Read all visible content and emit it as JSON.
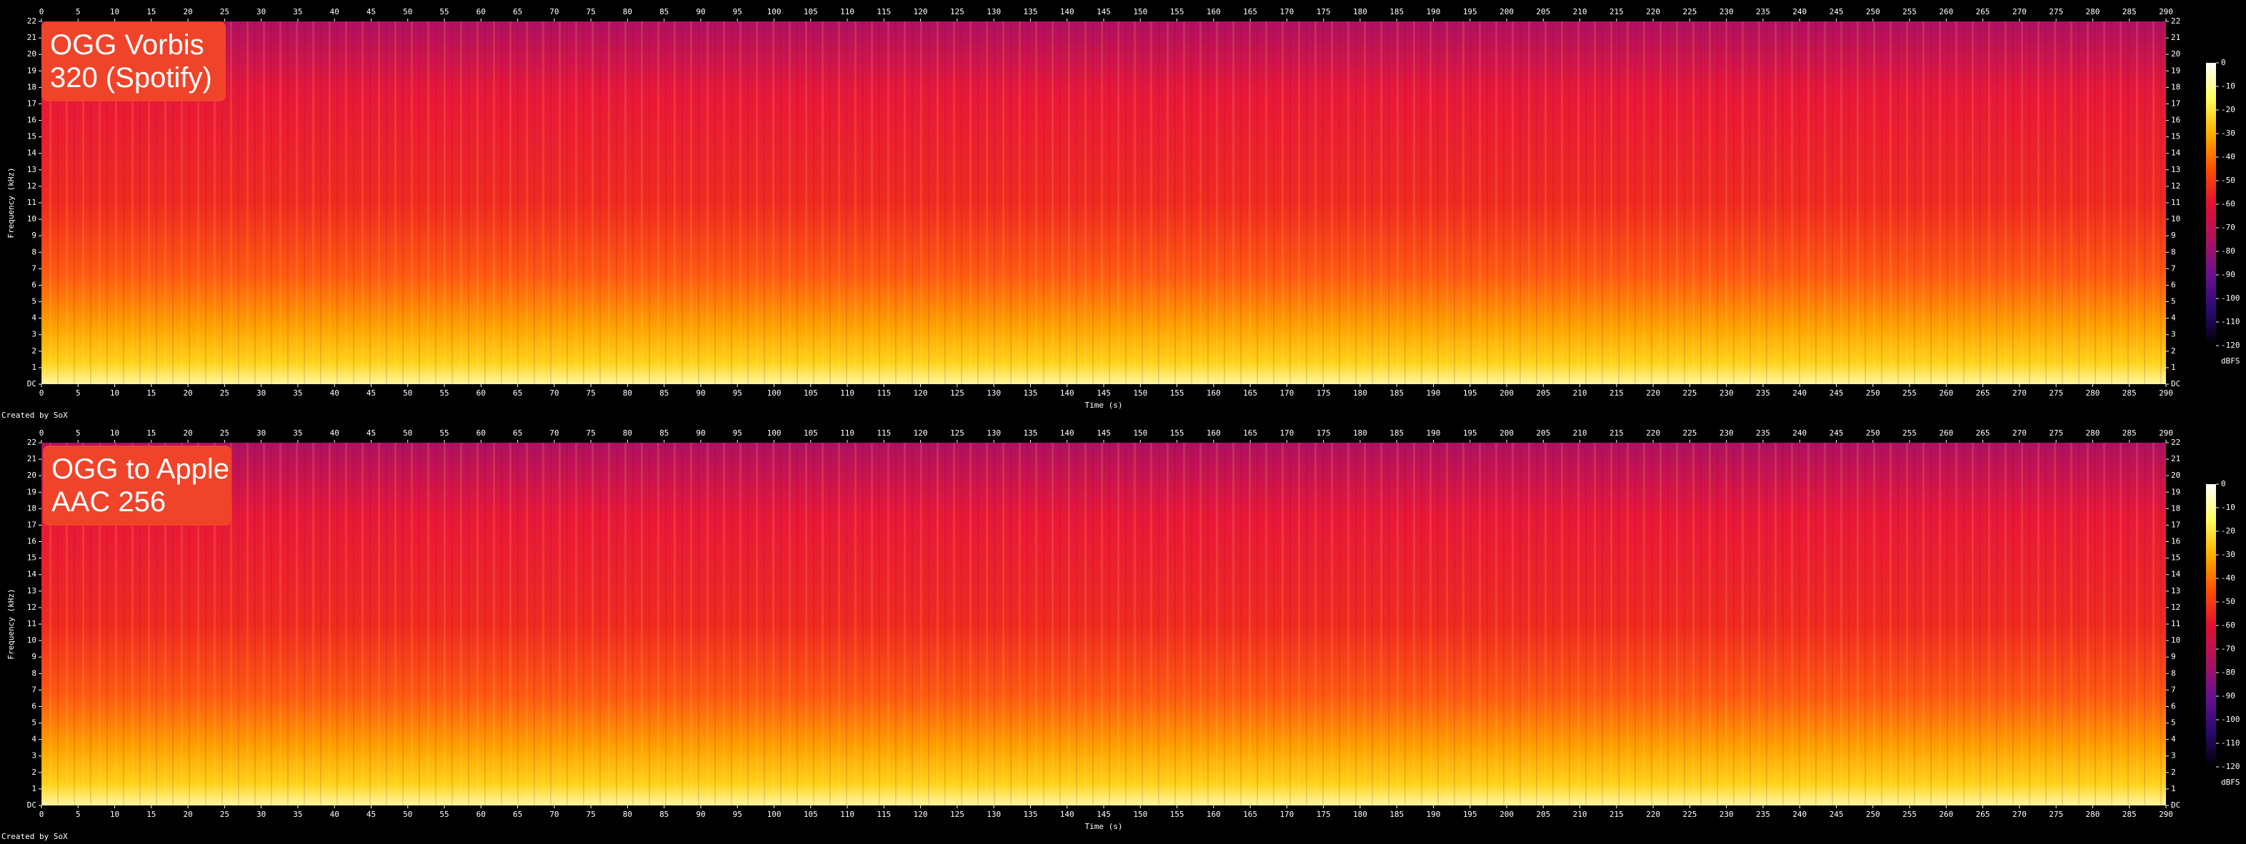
{
  "chart_data": [
    {
      "type": "spectrogram",
      "annotation": [
        "OGG Vorbis",
        "320 (Spotify)"
      ],
      "x_label": "Time (s)",
      "y_label": "Frequency (kHz)",
      "credit": "Created by SoX",
      "xlim": [
        0,
        290
      ],
      "xticks": [
        0,
        5,
        10,
        15,
        20,
        25,
        30,
        35,
        40,
        45,
        50,
        55,
        60,
        65,
        70,
        75,
        80,
        85,
        90,
        95,
        100,
        105,
        110,
        115,
        120,
        125,
        130,
        135,
        140,
        145,
        150,
        155,
        160,
        165,
        170,
        175,
        180,
        185,
        190,
        195,
        200,
        205,
        210,
        215,
        220,
        225,
        230,
        235,
        240,
        245,
        250,
        255,
        260,
        265,
        270,
        275,
        280,
        285,
        290
      ],
      "ylim": [
        0,
        22
      ],
      "yticks": [
        {
          "value": 0,
          "label": "DC"
        },
        1,
        2,
        3,
        4,
        5,
        6,
        7,
        8,
        9,
        10,
        11,
        12,
        13,
        14,
        15,
        16,
        17,
        18,
        19,
        20,
        21,
        22
      ],
      "colorbar": {
        "label": "dBFS",
        "lim": [
          -120,
          0
        ],
        "ticks": [
          0,
          -10,
          -20,
          -30,
          -40,
          -50,
          -60,
          -70,
          -80,
          -90,
          -100,
          -110,
          -120
        ],
        "colormap": [
          "#ffffff",
          "#ffff60",
          "#ffb000",
          "#ff5000",
          "#e01030",
          "#b01060",
          "#6a1090",
          "#2a0a70",
          "#000000"
        ]
      }
    },
    {
      "type": "spectrogram",
      "annotation": [
        "OGG to Apple",
        "AAC 256"
      ],
      "x_label": "Time (s)",
      "y_label": "Frequency (kHz)",
      "credit": "Created by SoX",
      "xlim": [
        0,
        290
      ],
      "xticks": [
        0,
        5,
        10,
        15,
        20,
        25,
        30,
        35,
        40,
        45,
        50,
        55,
        60,
        65,
        70,
        75,
        80,
        85,
        90,
        95,
        100,
        105,
        110,
        115,
        120,
        125,
        130,
        135,
        140,
        145,
        150,
        155,
        160,
        165,
        170,
        175,
        180,
        185,
        190,
        195,
        200,
        205,
        210,
        215,
        220,
        225,
        230,
        235,
        240,
        245,
        250,
        255,
        260,
        265,
        270,
        275,
        280,
        285,
        290
      ],
      "ylim": [
        0,
        22
      ],
      "yticks": [
        {
          "value": 0,
          "label": "DC"
        },
        1,
        2,
        3,
        4,
        5,
        6,
        7,
        8,
        9,
        10,
        11,
        12,
        13,
        14,
        15,
        16,
        17,
        18,
        19,
        20,
        21,
        22
      ],
      "colorbar": {
        "label": "dBFS",
        "lim": [
          -120,
          0
        ],
        "ticks": [
          0,
          -10,
          -20,
          -30,
          -40,
          -50,
          -60,
          -70,
          -80,
          -90,
          -100,
          -110,
          -120
        ],
        "colormap": [
          "#ffffff",
          "#ffff60",
          "#ffb000",
          "#ff5000",
          "#e01030",
          "#b01060",
          "#6a1090",
          "#2a0a70",
          "#000000"
        ]
      }
    }
  ]
}
